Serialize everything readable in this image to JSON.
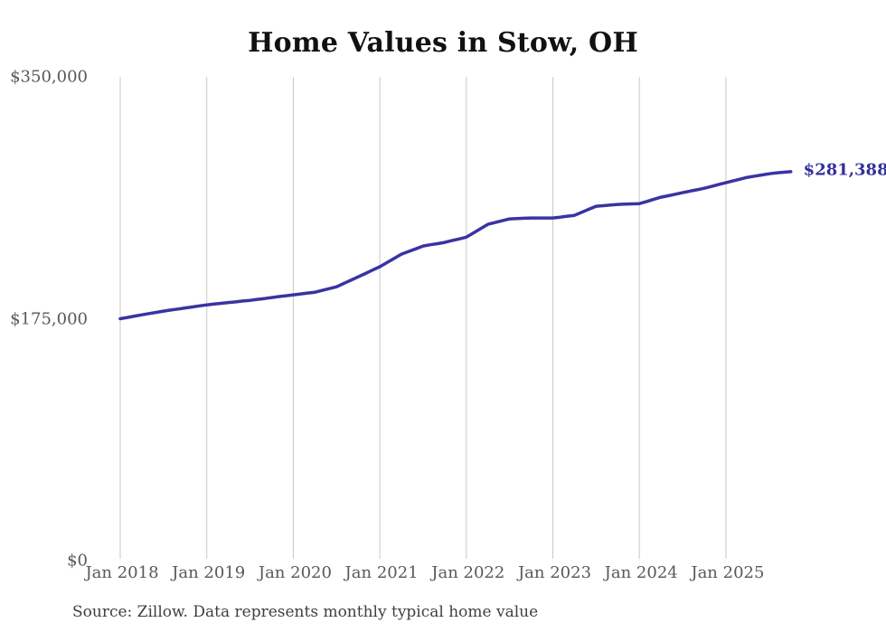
{
  "title": "Home Values in Stow, OH",
  "source_note": "Source: Zillow. Data represents monthly typical home value",
  "end_label": "$281,388",
  "colors": {
    "line": "#3a33a3",
    "end_label": "#332f9e",
    "grid": "#c9c9c9",
    "axis_label": "#595959",
    "title": "#111111",
    "source": "#3f3f3f",
    "background": "#ffffff"
  },
  "chart_data": {
    "type": "line",
    "title": "Home Values in Stow, OH",
    "xlabel": "",
    "ylabel": "",
    "ylim": [
      0,
      350000
    ],
    "y_ticks": [
      0,
      175000,
      350000
    ],
    "y_tick_labels": [
      "$0",
      "$175,000",
      "$350,000"
    ],
    "x_tick_labels": [
      "Jan 2018",
      "Jan 2019",
      "Jan 2020",
      "Jan 2021",
      "Jan 2022",
      "Jan 2023",
      "Jan 2024",
      "Jan 2025"
    ],
    "grid": "vertical-only",
    "legend": "none",
    "last_value_annotation": "$281,388",
    "series": [
      {
        "name": "Typical home value",
        "frequency": "monthly",
        "x": [
          "2018-01",
          "2018-02",
          "2018-03",
          "2018-04",
          "2018-05",
          "2018-06",
          "2018-07",
          "2018-08",
          "2018-09",
          "2018-10",
          "2018-11",
          "2018-12",
          "2019-01",
          "2019-02",
          "2019-03",
          "2019-04",
          "2019-05",
          "2019-06",
          "2019-07",
          "2019-08",
          "2019-09",
          "2019-10",
          "2019-11",
          "2019-12",
          "2020-01",
          "2020-02",
          "2020-03",
          "2020-04",
          "2020-05",
          "2020-06",
          "2020-07",
          "2020-08",
          "2020-09",
          "2020-10",
          "2020-11",
          "2020-12",
          "2021-01",
          "2021-02",
          "2021-03",
          "2021-04",
          "2021-05",
          "2021-06",
          "2021-07",
          "2021-08",
          "2021-09",
          "2021-10",
          "2021-11",
          "2021-12",
          "2022-01",
          "2022-02",
          "2022-03",
          "2022-04",
          "2022-05",
          "2022-06",
          "2022-07",
          "2022-08",
          "2022-09",
          "2022-10",
          "2022-11",
          "2022-12",
          "2023-01",
          "2023-02",
          "2023-03",
          "2023-04",
          "2023-05",
          "2023-06",
          "2023-07",
          "2023-08",
          "2023-09",
          "2023-10",
          "2023-11",
          "2023-12",
          "2024-01",
          "2024-02",
          "2024-03",
          "2024-04",
          "2024-05",
          "2024-06",
          "2024-07",
          "2024-08",
          "2024-09",
          "2024-10",
          "2024-11",
          "2024-12",
          "2025-01",
          "2025-02",
          "2025-03",
          "2025-04",
          "2025-05",
          "2025-06",
          "2025-07",
          "2025-08",
          "2025-09",
          "2025-10"
        ],
        "values": [
          175000,
          175900,
          176900,
          177800,
          178700,
          179600,
          180500,
          181300,
          182000,
          182800,
          183500,
          184300,
          185000,
          185600,
          186100,
          186700,
          187200,
          187800,
          188300,
          189000,
          189600,
          190300,
          191000,
          191600,
          192300,
          192900,
          193600,
          194200,
          195500,
          196800,
          198100,
          200500,
          202900,
          205300,
          207700,
          210200,
          212600,
          215600,
          218700,
          221700,
          223700,
          225600,
          227600,
          228500,
          229300,
          230200,
          231500,
          232700,
          234000,
          237100,
          240200,
          243300,
          244600,
          245900,
          247200,
          247400,
          247700,
          247900,
          247900,
          247900,
          247900,
          248500,
          249200,
          249800,
          252000,
          254200,
          256400,
          256800,
          257300,
          257700,
          257900,
          258100,
          258300,
          259800,
          261400,
          262900,
          264000,
          265100,
          266200,
          267300,
          268300,
          269400,
          270700,
          272100,
          273400,
          274700,
          276000,
          277300,
          278200,
          279000,
          279900,
          280500,
          281000,
          281388
        ]
      }
    ]
  }
}
